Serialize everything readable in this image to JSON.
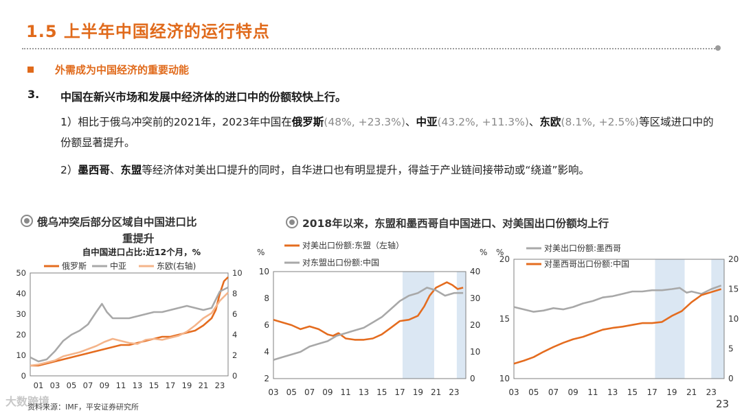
{
  "header": {
    "title": "1.5 上半年中国经济的运行特点"
  },
  "bullet": "外需成为中国经济的重要动能",
  "point": {
    "number": "3.",
    "text": "中国在新兴市场和发展中经济体的进口中的份额较快上行。"
  },
  "para1": {
    "pre": "1）相比于俄乌冲突前的2021年，2023年中国在",
    "r1": "俄罗斯",
    "v1": "(48%, +23.3%)",
    "sep1": "、",
    "r2": "中亚",
    "v2": "(43.2%, +11.3%)",
    "sep2": "、",
    "r3": "东欧",
    "v3": "(8.1%, +2.5%)",
    "post": "等区域进口中的份额显著提升。"
  },
  "para2": {
    "pre": "2）",
    "r1": "墨西哥",
    "sep": "、",
    "r2": "东盟",
    "post": "等经济体对美出口提升的同时，自华进口也有明显提升，得益于产业链间接带动或“绕道”影响。"
  },
  "captions": {
    "left_line1": "俄乌冲突后部分区域自中国进口比",
    "left_line2": "重提升",
    "right": "2018年以来，东盟和墨西哥自中国进口、对美国出口份额均上行"
  },
  "source": "资料来源：IMF，平安证券研究所",
  "page_number": "23",
  "watermark": "大数跨境",
  "colors": {
    "orange": "#e46c1f",
    "gray": "#a8a8a8",
    "peach": "#f4b48a",
    "shade": "#dbe7f3"
  },
  "chart_data": [
    {
      "type": "line",
      "title": "自中国进口占比:近12个月，%",
      "legend": [
        "俄罗斯",
        "中亚",
        "东欧(右轴)"
      ],
      "x_ticks": [
        "01",
        "03",
        "05",
        "07",
        "09",
        "11",
        "13",
        "15",
        "17",
        "19",
        "21",
        "23"
      ],
      "y_left_ticks": [
        "0",
        "10",
        "20",
        "30",
        "40",
        "50"
      ],
      "y_right_ticks": [
        "0",
        "2",
        "4",
        "6",
        "8",
        "10"
      ],
      "ylim_left": [
        0,
        50
      ],
      "ylim_right": [
        0,
        10
      ],
      "xlim": [
        2000,
        2024
      ],
      "series": [
        {
          "name": "俄罗斯",
          "axis": "left",
          "color": "#e46c1f",
          "x": [
            2000,
            2001,
            2002,
            2003,
            2004,
            2005,
            2006,
            2007,
            2008,
            2009,
            2010,
            2011,
            2012,
            2013,
            2014,
            2015,
            2016,
            2017,
            2018,
            2019,
            2020,
            2021,
            2022,
            2022.5,
            2023,
            2023.5,
            2024
          ],
          "y": [
            5,
            5,
            6,
            7,
            8,
            9,
            10,
            11,
            12,
            13,
            14,
            15,
            15,
            16,
            17,
            18,
            19,
            19,
            20,
            21,
            22,
            24.5,
            28,
            32,
            40,
            46,
            48
          ]
        },
        {
          "name": "中亚",
          "axis": "left",
          "color": "#a8a8a8",
          "x": [
            2000,
            2001,
            2002,
            2003,
            2004,
            2005,
            2006,
            2007,
            2008,
            2008.7,
            2009.3,
            2010,
            2011,
            2012,
            2013,
            2014,
            2015,
            2016,
            2017,
            2018,
            2019,
            2020,
            2021,
            2022,
            2022.5,
            2023,
            2024
          ],
          "y": [
            9,
            7,
            8,
            12,
            17,
            20,
            22,
            25,
            31,
            35,
            31,
            28,
            28,
            28,
            29,
            30,
            31,
            31,
            32,
            33,
            34,
            33,
            32,
            33,
            37,
            41,
            43
          ]
        },
        {
          "name": "东欧(右轴)",
          "axis": "right",
          "color": "#f4b48a",
          "x": [
            2000,
            2001,
            2002,
            2003,
            2004,
            2005,
            2006,
            2007,
            2008,
            2009,
            2010,
            2011,
            2012,
            2013,
            2014,
            2015,
            2016,
            2017,
            2018,
            2019,
            2020,
            2021,
            2022,
            2023,
            2024
          ],
          "y": [
            1.0,
            1.1,
            1.3,
            1.5,
            1.9,
            2.1,
            2.3,
            2.6,
            2.9,
            3.3,
            3.6,
            3.4,
            3.2,
            3.1,
            3.5,
            3.6,
            3.5,
            3.7,
            3.9,
            4.3,
            4.9,
            5.6,
            6.1,
            7.3,
            8.1
          ]
        }
      ]
    },
    {
      "type": "line",
      "legend": [
        "对美出口份额:东盟（左轴）",
        "对东盟出口份额:中国"
      ],
      "x_ticks": [
        "03",
        "05",
        "07",
        "09",
        "11",
        "13",
        "15",
        "17",
        "19",
        "21",
        "23"
      ],
      "y_left_ticks": [
        "2",
        "4",
        "6",
        "8",
        "10"
      ],
      "y_right_ticks": [
        "0",
        "10",
        "20",
        "30",
        "40"
      ],
      "unit_left": "%",
      "unit_right": "%",
      "ylim_left": [
        2,
        10
      ],
      "ylim_right": [
        0,
        40
      ],
      "xlim": [
        2003,
        2024.3
      ],
      "shaded": [
        [
          2017.3,
          2020.8
        ],
        [
          2023.3,
          2024.3
        ]
      ],
      "series": [
        {
          "name": "对美出口份额:东盟（左轴）",
          "axis": "left",
          "color": "#e46c1f",
          "x": [
            2003,
            2004,
            2005,
            2006,
            2007,
            2008,
            2009,
            2009.6,
            2010.2,
            2011,
            2012,
            2013,
            2014,
            2015,
            2016,
            2017,
            2018,
            2019,
            2019.7,
            2020.3,
            2021,
            2021.6,
            2022.2,
            2022.8,
            2023.4,
            2024
          ],
          "y": [
            6.4,
            6.2,
            6.0,
            5.7,
            5.9,
            5.7,
            5.3,
            5.2,
            5.4,
            5.0,
            4.9,
            4.9,
            5.0,
            5.3,
            5.8,
            6.3,
            6.4,
            6.7,
            7.4,
            8.2,
            8.8,
            9.0,
            9.2,
            9.0,
            8.7,
            8.8
          ]
        },
        {
          "name": "对东盟出口份额:中国",
          "axis": "right",
          "color": "#a8a8a8",
          "x": [
            2003,
            2004,
            2005,
            2006,
            2007,
            2008,
            2009,
            2010,
            2011,
            2012,
            2013,
            2014,
            2015,
            2016,
            2017,
            2018,
            2019,
            2020,
            2021,
            2022,
            2023,
            2024
          ],
          "y": [
            7,
            8,
            9,
            10,
            12,
            13,
            14,
            16,
            17,
            18,
            19,
            21,
            23,
            26,
            29,
            31,
            32,
            34,
            33,
            31,
            32,
            32
          ]
        }
      ]
    },
    {
      "type": "line",
      "legend": [
        "对美出口份额:墨西哥",
        "对墨西哥出口份额:中国"
      ],
      "x_ticks": [
        "03",
        "05",
        "07",
        "09",
        "11",
        "13",
        "15",
        "17",
        "19",
        "21",
        "23"
      ],
      "y_left_ticks": [
        "10",
        "15",
        "20"
      ],
      "y_right_ticks": [
        "0",
        "5",
        "10",
        "15",
        "20"
      ],
      "unit_left": "%",
      "ylim_left": [
        10,
        20
      ],
      "ylim_right": [
        0,
        20
      ],
      "xlim": [
        2003,
        2024.3
      ],
      "shaded": [
        [
          2017.3,
          2020.3
        ],
        [
          2023.0,
          2024.3
        ]
      ],
      "series": [
        {
          "name": "对美出口份额:墨西哥",
          "axis": "left",
          "color": "#a8a8a8",
          "x": [
            2003,
            2004,
            2005,
            2006,
            2007,
            2008,
            2009,
            2010,
            2011,
            2012,
            2013,
            2014,
            2015,
            2016,
            2017,
            2018,
            2019,
            2019.8,
            2020.5,
            2021,
            2022,
            2023,
            2024
          ],
          "y": [
            16.0,
            15.8,
            15.6,
            15.7,
            15.9,
            15.8,
            16.0,
            16.3,
            16.5,
            16.8,
            16.9,
            17.1,
            17.3,
            17.3,
            17.4,
            17.4,
            17.5,
            17.6,
            17.2,
            17.3,
            17.1,
            17.5,
            17.8
          ]
        },
        {
          "name": "对墨西哥出口份额:中国",
          "axis": "right",
          "color": "#e46c1f",
          "x": [
            2003,
            2004,
            2005,
            2006,
            2007,
            2008,
            2009,
            2010,
            2011,
            2012,
            2013,
            2014,
            2015,
            2016,
            2017,
            2018,
            2019,
            2020,
            2021,
            2022,
            2023,
            2024
          ],
          "y": [
            2.5,
            3.0,
            3.6,
            4.5,
            5.3,
            6.0,
            6.6,
            7.0,
            7.6,
            8.2,
            8.5,
            8.7,
            9.0,
            9.3,
            9.3,
            9.5,
            10.5,
            11.3,
            12.8,
            14.0,
            14.5,
            15.0
          ]
        }
      ]
    }
  ]
}
